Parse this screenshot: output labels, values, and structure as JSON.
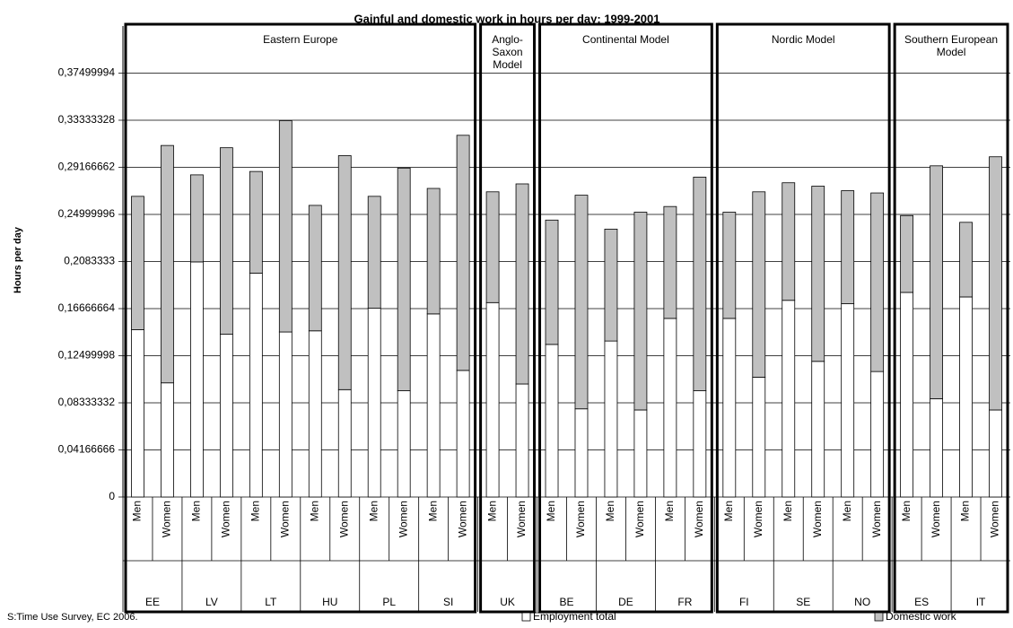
{
  "chart_data": {
    "type": "bar",
    "stacked": true,
    "title": "Gainful and domestic work in hours per day: 1999-2001",
    "y_label": "Hours per day",
    "source": "S:Time Use Survey, EC 2006.",
    "categories": [
      "Men",
      "Women",
      "Men",
      "Women",
      "Men",
      "Women",
      "Men",
      "Women",
      "Men",
      "Women",
      "Men",
      "Women",
      "Men",
      "Women",
      "Men",
      "Women",
      "Men",
      "Women",
      "Men",
      "Women",
      "Men",
      "Women",
      "Men",
      "Women",
      "Men",
      "Women",
      "Men",
      "Women",
      "Men",
      "Women"
    ],
    "groups": [
      {
        "label": "Eastern Europe",
        "countries": [
          "EE",
          "LV",
          "LT",
          "HU",
          "PL",
          "SI"
        ]
      },
      {
        "label": "Anglo-Saxon Model",
        "countries": [
          "UK"
        ]
      },
      {
        "label": "Continental Model",
        "countries": [
          "BE",
          "DE",
          "FR"
        ]
      },
      {
        "label": "Nordic Model",
        "countries": [
          "FI",
          "SE",
          "NO"
        ]
      },
      {
        "label": "Southern European Model",
        "countries": [
          "ES",
          "IT"
        ]
      }
    ],
    "series": [
      {
        "name": "Employment total",
        "color": "#ffffff",
        "values": [
          0.148,
          0.101,
          0.208,
          0.144,
          0.198,
          0.146,
          0.147,
          0.095,
          0.167,
          0.094,
          0.162,
          0.112,
          0.172,
          0.1,
          0.135,
          0.078,
          0.138,
          0.077,
          0.158,
          0.094,
          0.158,
          0.106,
          0.174,
          0.12,
          0.171,
          0.111,
          0.181,
          0.087,
          0.177,
          0.077
        ]
      },
      {
        "name": "Domestic work",
        "color": "#c0c0c0",
        "values": [
          0.118,
          0.21,
          0.077,
          0.165,
          0.09,
          0.187,
          0.111,
          0.207,
          0.099,
          0.197,
          0.111,
          0.208,
          0.098,
          0.177,
          0.11,
          0.189,
          0.099,
          0.175,
          0.099,
          0.189,
          0.094,
          0.164,
          0.104,
          0.155,
          0.1,
          0.158,
          0.068,
          0.206,
          0.066,
          0.224
        ]
      }
    ],
    "ylim": [
      0,
      0.41666662
    ],
    "yticks": [
      {
        "value": 0,
        "label": "0"
      },
      {
        "value": 0.04166666,
        "label": "0,04166666"
      },
      {
        "value": 0.08333332,
        "label": "0,08333332"
      },
      {
        "value": 0.12499998,
        "label": "0,12499998"
      },
      {
        "value": 0.16666664,
        "label": "0,16666664"
      },
      {
        "value": 0.2083333,
        "label": "0,2083333"
      },
      {
        "value": 0.24999996,
        "label": "0,24999996"
      },
      {
        "value": 0.29166662,
        "label": "0,29166662"
      },
      {
        "value": 0.33333328,
        "label": "0,33333328"
      },
      {
        "value": 0.37499994,
        "label": "0,37499994"
      }
    ],
    "grid": true,
    "legend": "bottom-right"
  }
}
